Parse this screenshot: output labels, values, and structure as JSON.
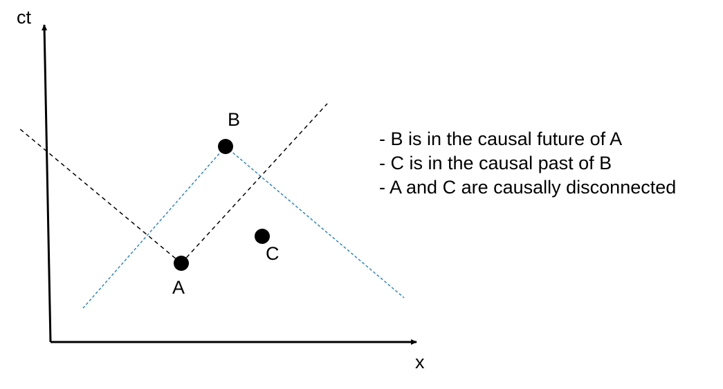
{
  "axes": {
    "vertical_label": "ct",
    "horizontal_label": "x"
  },
  "events": {
    "a": {
      "label": "A"
    },
    "b": {
      "label": "B"
    },
    "c": {
      "label": "C"
    }
  },
  "colors": {
    "axis": "#000000",
    "light_cone_a": "#000000",
    "light_cone_b": "#2e86c1",
    "event": "#000000"
  },
  "notes": [
    "- B is in the causal future of A",
    "- C is in the causal past of B",
    "- A and C are causally disconnected"
  ]
}
